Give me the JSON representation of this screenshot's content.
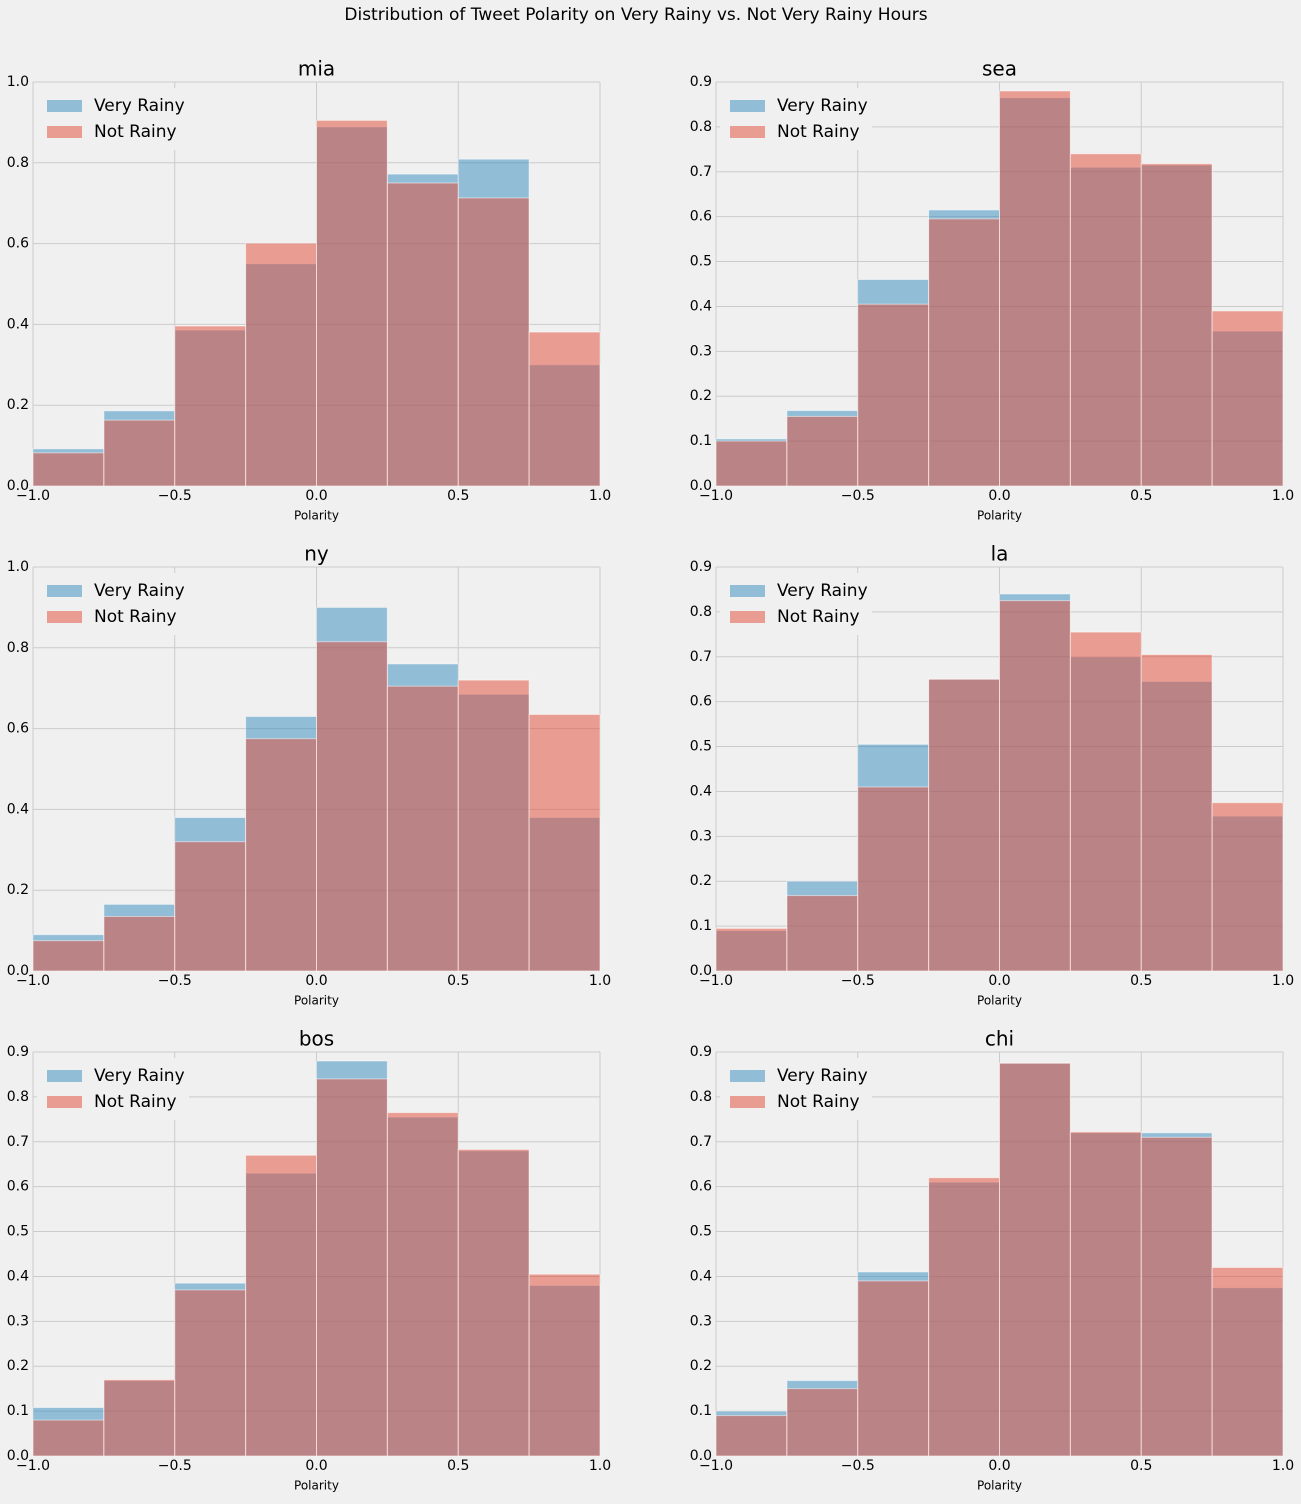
{
  "title": "Distribution of Tweet Polarity on Very Rainy vs. Not Very Rainy Hours",
  "chart_data": [
    {
      "type": "histogram",
      "title": "mia",
      "xlabel": "Polarity",
      "legend": "upper left",
      "grid": true,
      "bins": [
        -1,
        -0.75,
        -0.5,
        -0.25,
        0,
        0.25,
        0.5,
        0.75,
        1
      ],
      "series": [
        {
          "name": "Very Rainy",
          "color": "#348abd",
          "values": [
            0.092,
            0.186,
            0.386,
            0.55,
            0.889,
            0.772,
            0.809,
            0.3
          ]
        },
        {
          "name": "Not Rainy",
          "color": "#e24a33",
          "values": [
            0.082,
            0.163,
            0.396,
            0.601,
            0.905,
            0.75,
            0.713,
            0.381
          ]
        }
      ],
      "xlim": [
        -1,
        1
      ],
      "xticks": [
        {
          "value": -1,
          "label": "−1.0"
        },
        {
          "value": -0.5,
          "label": "−0.5"
        },
        {
          "value": 0,
          "label": "0.0"
        },
        0.5,
        {
          "value": 1,
          "label": "1.0"
        }
      ],
      "ylim": [
        0,
        1
      ],
      "yticks": [
        {
          "value": 0,
          "label": "0.0"
        },
        0.2,
        0.4,
        0.6,
        0.8,
        {
          "value": 1,
          "label": "1.0"
        }
      ]
    },
    {
      "type": "histogram",
      "title": "sea",
      "xlabel": "Polarity",
      "legend": "upper left",
      "grid": true,
      "bins": [
        -1,
        -0.75,
        -0.5,
        -0.25,
        0,
        0.25,
        0.5,
        0.75,
        1
      ],
      "series": [
        {
          "name": "Very Rainy",
          "color": "#348abd",
          "values": [
            0.105,
            0.168,
            0.46,
            0.615,
            0.865,
            0.71,
            0.715,
            0.345
          ]
        },
        {
          "name": "Not Rainy",
          "color": "#e24a33",
          "values": [
            0.1,
            0.155,
            0.405,
            0.595,
            0.88,
            0.74,
            0.718,
            0.39
          ]
        }
      ],
      "xlim": [
        -1,
        1
      ],
      "xticks": [
        {
          "value": -1,
          "label": "−1.0"
        },
        {
          "value": -0.5,
          "label": "−0.5"
        },
        {
          "value": 0,
          "label": "0.0"
        },
        0.5,
        {
          "value": 1,
          "label": "1.0"
        }
      ],
      "ylim": [
        0,
        0.9
      ],
      "yticks": [
        {
          "value": 0,
          "label": "0.0"
        },
        0.1,
        0.2,
        0.3,
        0.4,
        0.5,
        0.6,
        0.7,
        0.8,
        0.9
      ]
    },
    {
      "type": "histogram",
      "title": "ny",
      "xlabel": "Polarity",
      "legend": "upper left",
      "grid": true,
      "bins": [
        -1,
        -0.75,
        -0.5,
        -0.25,
        0,
        0.25,
        0.5,
        0.75,
        1
      ],
      "series": [
        {
          "name": "Very Rainy",
          "color": "#348abd",
          "values": [
            0.09,
            0.165,
            0.38,
            0.63,
            0.9,
            0.76,
            0.685,
            0.38
          ]
        },
        {
          "name": "Not Rainy",
          "color": "#e24a33",
          "values": [
            0.075,
            0.135,
            0.32,
            0.575,
            0.815,
            0.705,
            0.72,
            0.635
          ]
        }
      ],
      "xlim": [
        -1,
        1
      ],
      "xticks": [
        {
          "value": -1,
          "label": "−1.0"
        },
        {
          "value": -0.5,
          "label": "−0.5"
        },
        {
          "value": 0,
          "label": "0.0"
        },
        0.5,
        {
          "value": 1,
          "label": "1.0"
        }
      ],
      "ylim": [
        0,
        1
      ],
      "yticks": [
        {
          "value": 0,
          "label": "0.0"
        },
        0.2,
        0.4,
        0.6,
        0.8,
        {
          "value": 1,
          "label": "1.0"
        }
      ]
    },
    {
      "type": "histogram",
      "title": "la",
      "xlabel": "Polarity",
      "legend": "upper left",
      "grid": true,
      "bins": [
        -1,
        -0.75,
        -0.5,
        -0.25,
        0,
        0.25,
        0.5,
        0.75,
        1
      ],
      "series": [
        {
          "name": "Very Rainy",
          "color": "#348abd",
          "values": [
            0.09,
            0.2,
            0.505,
            0.65,
            0.84,
            0.7,
            0.645,
            0.345
          ]
        },
        {
          "name": "Not Rainy",
          "color": "#e24a33",
          "values": [
            0.095,
            0.168,
            0.41,
            0.65,
            0.825,
            0.755,
            0.705,
            0.375
          ]
        }
      ],
      "xlim": [
        -1,
        1
      ],
      "xticks": [
        {
          "value": -1,
          "label": "−1.0"
        },
        {
          "value": -0.5,
          "label": "−0.5"
        },
        {
          "value": 0,
          "label": "0.0"
        },
        0.5,
        {
          "value": 1,
          "label": "1.0"
        }
      ],
      "ylim": [
        0,
        0.9
      ],
      "yticks": [
        {
          "value": 0,
          "label": "0.0"
        },
        0.1,
        0.2,
        0.3,
        0.4,
        0.5,
        0.6,
        0.7,
        0.8,
        0.9
      ]
    },
    {
      "type": "histogram",
      "title": "bos",
      "xlabel": "Polarity",
      "legend": "upper left",
      "grid": true,
      "bins": [
        -1,
        -0.75,
        -0.5,
        -0.25,
        0,
        0.25,
        0.5,
        0.75,
        1
      ],
      "series": [
        {
          "name": "Very Rainy",
          "color": "#348abd",
          "values": [
            0.108,
            0.168,
            0.385,
            0.63,
            0.88,
            0.755,
            0.68,
            0.38
          ]
        },
        {
          "name": "Not Rainy",
          "color": "#e24a33",
          "values": [
            0.08,
            0.17,
            0.37,
            0.67,
            0.84,
            0.765,
            0.683,
            0.405
          ]
        }
      ],
      "xlim": [
        -1,
        1
      ],
      "xticks": [
        {
          "value": -1,
          "label": "−1.0"
        },
        {
          "value": -0.5,
          "label": "−0.5"
        },
        {
          "value": 0,
          "label": "0.0"
        },
        0.5,
        {
          "value": 1,
          "label": "1.0"
        }
      ],
      "ylim": [
        0,
        0.9
      ],
      "yticks": [
        {
          "value": 0,
          "label": "0.0"
        },
        0.1,
        0.2,
        0.3,
        0.4,
        0.5,
        0.6,
        0.7,
        0.8,
        0.9
      ]
    },
    {
      "type": "histogram",
      "title": "chi",
      "xlabel": "Polarity",
      "legend": "upper left",
      "grid": true,
      "bins": [
        -1,
        -0.75,
        -0.5,
        -0.25,
        0,
        0.25,
        0.5,
        0.75,
        1
      ],
      "series": [
        {
          "name": "Very Rainy",
          "color": "#348abd",
          "values": [
            0.1,
            0.168,
            0.41,
            0.61,
            0.875,
            0.72,
            0.72,
            0.375
          ]
        },
        {
          "name": "Not Rainy",
          "color": "#e24a33",
          "values": [
            0.09,
            0.15,
            0.39,
            0.62,
            0.875,
            0.722,
            0.71,
            0.42
          ]
        }
      ],
      "xlim": [
        -1,
        1
      ],
      "xticks": [
        {
          "value": -1,
          "label": "−1.0"
        },
        {
          "value": -0.5,
          "label": "−0.5"
        },
        {
          "value": 0,
          "label": "0.0"
        },
        0.5,
        {
          "value": 1,
          "label": "1.0"
        }
      ],
      "ylim": [
        0,
        0.9
      ],
      "yticks": [
        {
          "value": 0,
          "label": "0.0"
        },
        0.1,
        0.2,
        0.3,
        0.4,
        0.5,
        0.6,
        0.7,
        0.8,
        0.9
      ]
    }
  ]
}
